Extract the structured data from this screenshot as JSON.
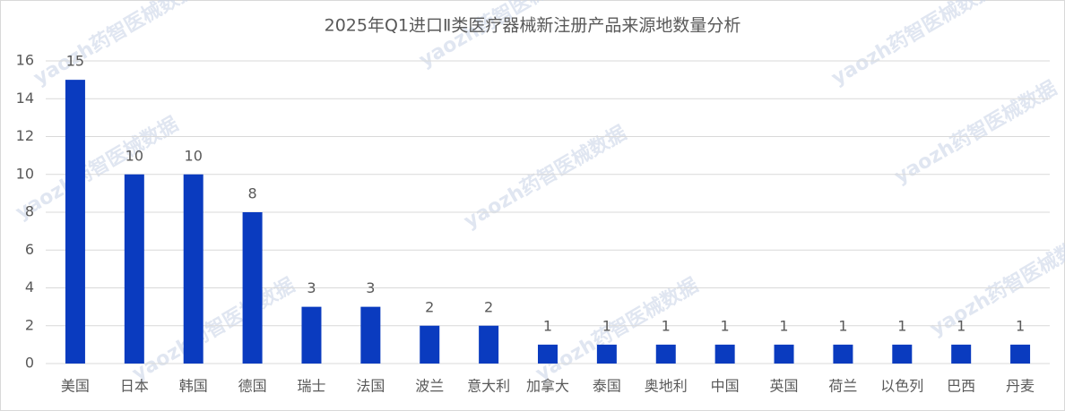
{
  "chart_data": {
    "type": "bar",
    "title": "2025年Q1进口Ⅱ类医疗器械新注册产品来源地数量分析",
    "categories": [
      "美国",
      "日本",
      "韩国",
      "德国",
      "瑞士",
      "法国",
      "波兰",
      "意大利",
      "加拿大",
      "泰国",
      "奥地利",
      "中国",
      "英国",
      "荷兰",
      "以色列",
      "巴西",
      "丹麦"
    ],
    "values": [
      15,
      10,
      10,
      8,
      3,
      3,
      2,
      2,
      1,
      1,
      1,
      1,
      1,
      1,
      1,
      1,
      1
    ],
    "color": "#0a3bbf",
    "ylim": [
      0,
      16
    ],
    "yticks": [
      0,
      2,
      4,
      6,
      8,
      10,
      12,
      14,
      16
    ],
    "grid": true,
    "watermark": "yaozh药智医械数据"
  }
}
